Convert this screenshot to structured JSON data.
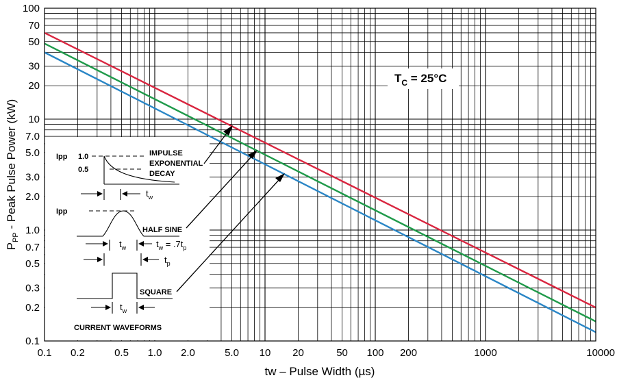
{
  "chart_data": {
    "type": "line",
    "title": "",
    "xlabel": "tw – Pulse Width (µs)",
    "ylabel_main": "P",
    "ylabel_sub": "PP",
    "ylabel_rest": " - Peak Pulse Power (kW)",
    "xscale": "log",
    "yscale": "log",
    "xlim": [
      0.1,
      10000
    ],
    "ylim": [
      0.1,
      100
    ],
    "grid": true,
    "x_ticks": [
      {
        "v": 0.1,
        "label": "0.1"
      },
      {
        "v": 0.2,
        "label": "0.2"
      },
      {
        "v": 0.5,
        "label": "0.5"
      },
      {
        "v": 1,
        "label": "1.0"
      },
      {
        "v": 2,
        "label": "2.0"
      },
      {
        "v": 5,
        "label": "5.0"
      },
      {
        "v": 10,
        "label": "10"
      },
      {
        "v": 20,
        "label": "20"
      },
      {
        "v": 50,
        "label": "50"
      },
      {
        "v": 100,
        "label": "100"
      },
      {
        "v": 200,
        "label": "200"
      },
      {
        "v": 1000,
        "label": "1000"
      },
      {
        "v": 10000,
        "label": "10000"
      }
    ],
    "y_ticks": [
      {
        "v": 0.1,
        "label": "0.1"
      },
      {
        "v": 0.2,
        "label": "0.2"
      },
      {
        "v": 0.3,
        "label": "0.3"
      },
      {
        "v": 0.5,
        "label": "0.5"
      },
      {
        "v": 0.7,
        "label": "0.7"
      },
      {
        "v": 1,
        "label": "1.0"
      },
      {
        "v": 2,
        "label": "2.0"
      },
      {
        "v": 3,
        "label": "3.0"
      },
      {
        "v": 5,
        "label": "5.0"
      },
      {
        "v": 7,
        "label": "7.0"
      },
      {
        "v": 10,
        "label": "10"
      },
      {
        "v": 20,
        "label": "20"
      },
      {
        "v": 30,
        "label": "30"
      },
      {
        "v": 50,
        "label": "50"
      },
      {
        "v": 70,
        "label": "70"
      },
      {
        "v": 100,
        "label": "100"
      }
    ],
    "series": [
      {
        "name": "impulse-exponential-decay",
        "color": "#d9253f",
        "x": [
          0.1,
          10000
        ],
        "y": [
          60,
          0.2
        ]
      },
      {
        "name": "half-sine",
        "color": "#1f9a4a",
        "x": [
          0.1,
          10000
        ],
        "y": [
          48,
          0.15
        ]
      },
      {
        "name": "square",
        "color": "#2a86c6",
        "x": [
          0.1,
          10000
        ],
        "y": [
          40,
          0.12
        ]
      }
    ],
    "annotation": {
      "t_main": "T",
      "t_sub": "C",
      "t_rest": " = 25°C"
    },
    "inset": {
      "title": "CURRENT WAVEFORMS",
      "ipp": "Ipp",
      "one": "1.0",
      "half": "0.5",
      "impulse": "IMPULSE",
      "exponential": "EXPONENTIAL",
      "decay": "DECAY",
      "half_sine": "HALF SINE",
      "square": "SQUARE",
      "tw_main": "t",
      "tw_sub": "w",
      "tw_eq_rest": " = .7t",
      "tp_sub": "p"
    }
  }
}
